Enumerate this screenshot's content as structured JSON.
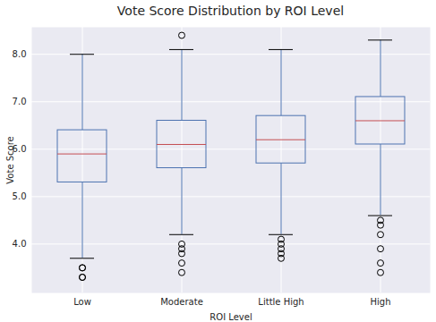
{
  "chart_data": {
    "type": "box",
    "title": "Vote Score Distribution by ROI Level",
    "x_label": "ROI Level",
    "y_label": "Vote Score",
    "categories": [
      "Low",
      "Moderate",
      "Little High",
      "High"
    ],
    "boxes": [
      {
        "whislo": 3.7,
        "q1": 5.3,
        "median": 5.9,
        "q3": 6.4,
        "whishi": 8.0,
        "fliers": [
          3.5,
          3.5,
          3.3,
          3.3
        ]
      },
      {
        "whislo": 4.2,
        "q1": 5.6,
        "median": 6.1,
        "q3": 6.6,
        "whishi": 8.1,
        "fliers": [
          4.0,
          3.9,
          3.8,
          3.6,
          3.4,
          8.4
        ]
      },
      {
        "whislo": 4.2,
        "q1": 5.7,
        "median": 6.2,
        "q3": 6.7,
        "whishi": 8.1,
        "fliers": [
          4.1,
          4.0,
          3.9,
          3.8,
          3.7
        ]
      },
      {
        "whislo": 4.6,
        "q1": 6.1,
        "median": 6.6,
        "q3": 7.1,
        "whishi": 8.3,
        "fliers": [
          4.5,
          4.4,
          4.2,
          3.9,
          3.6,
          3.4
        ]
      }
    ],
    "color": "#4c72b0",
    "ylim": [
      2.97,
      8.57
    ],
    "yticks": [
      4,
      5,
      6,
      7,
      8
    ],
    "grid": true
  }
}
